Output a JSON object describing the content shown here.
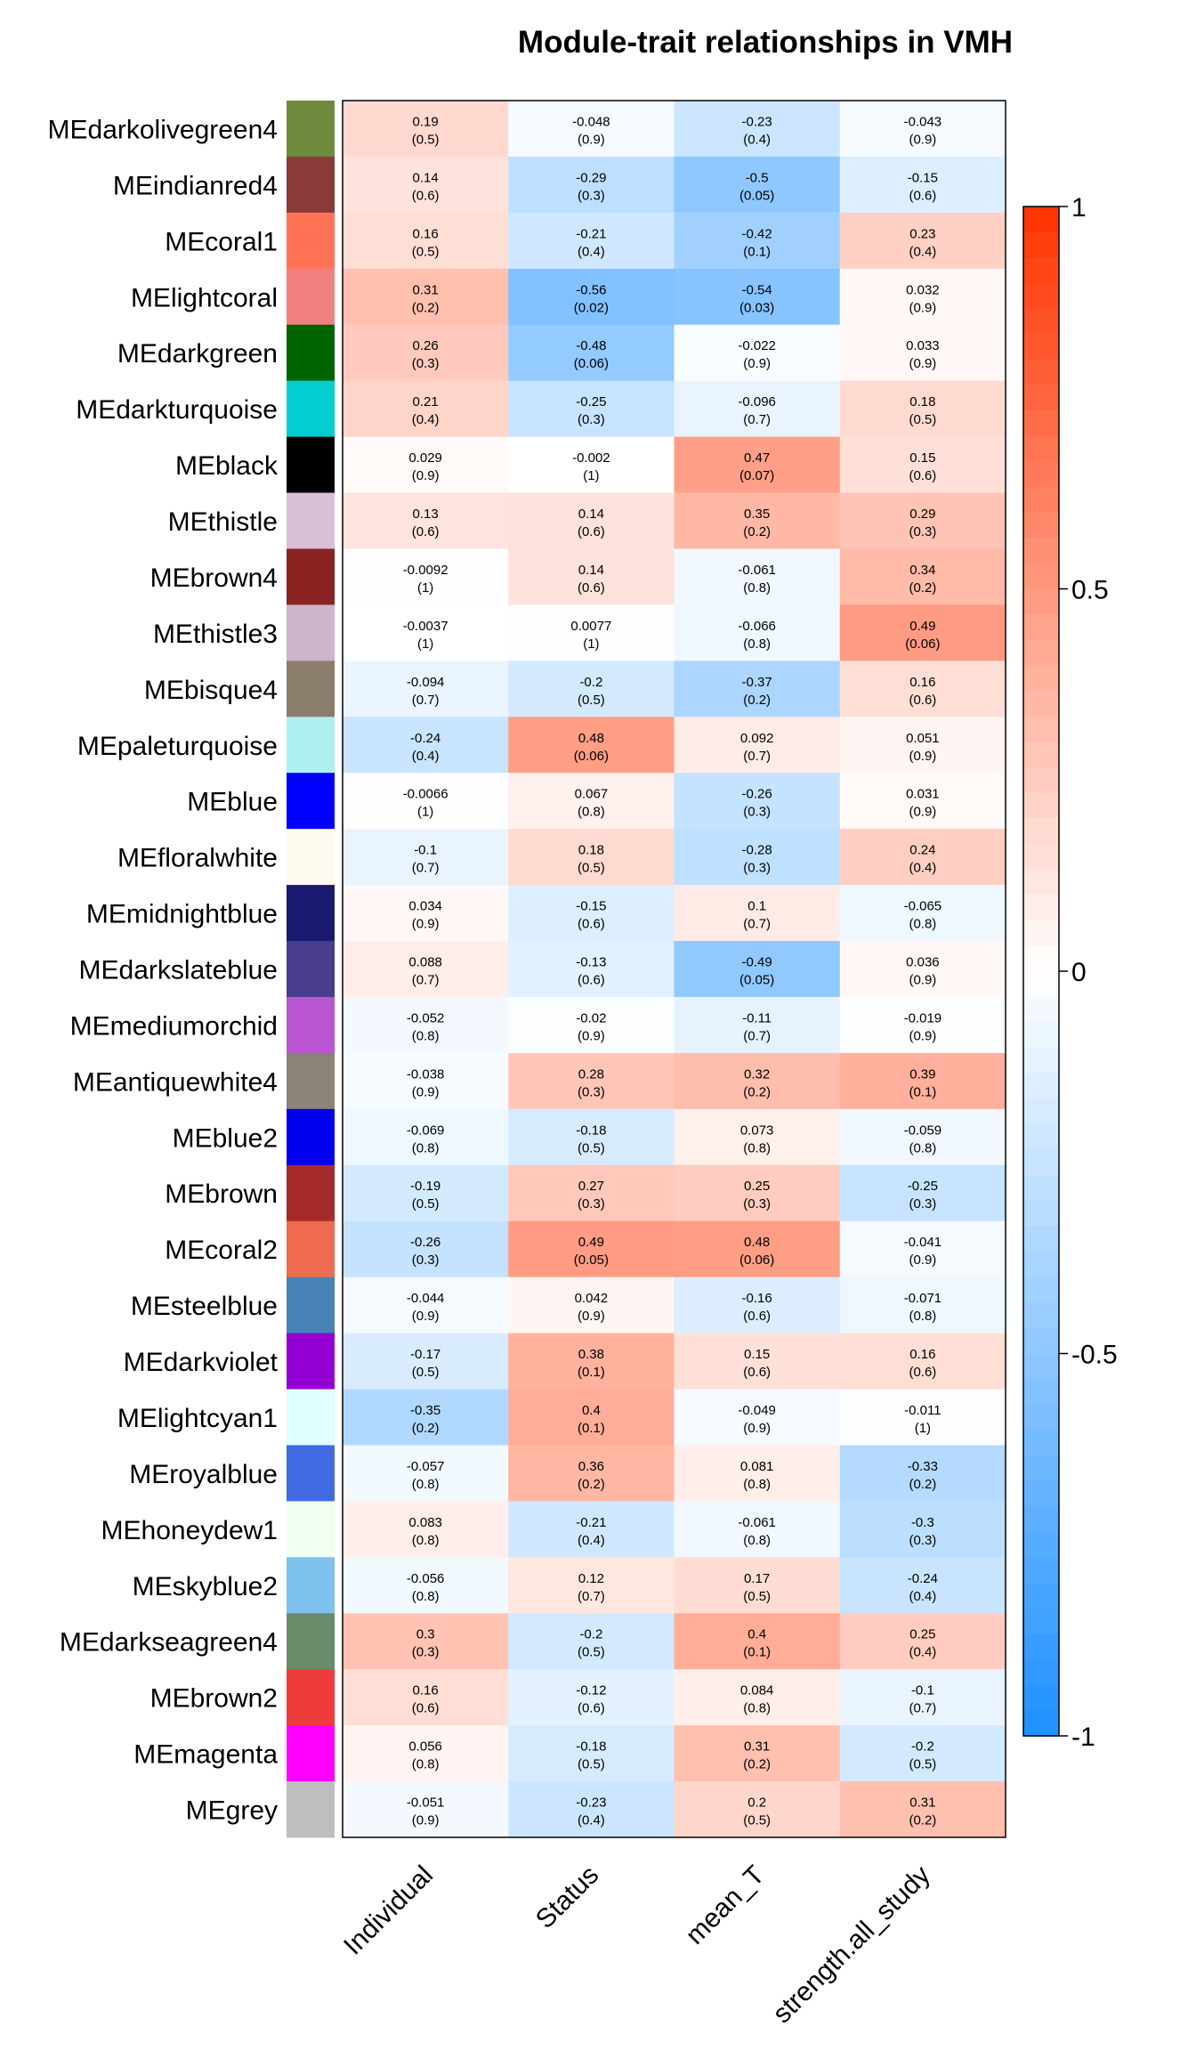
{
  "chart_data": {
    "type": "heatmap",
    "title": "Module-trait relationships in VMH",
    "columns": [
      "Individual",
      "Status",
      "mean_T",
      "strength.all_study"
    ],
    "rows": [
      {
        "name": "MEdarkolivegreen4",
        "color": "#6E8B3D",
        "r": [
          0.19,
          -0.048,
          -0.23,
          -0.043
        ],
        "r_label": [
          "0.19",
          "-0.048",
          "-0.23",
          "-0.043"
        ],
        "p": [
          "0.5",
          "0.9",
          "0.4",
          "0.9"
        ]
      },
      {
        "name": "MEindianred4",
        "color": "#8B3A3A",
        "r": [
          0.14,
          -0.29,
          -0.5,
          -0.15
        ],
        "r_label": [
          "0.14",
          "-0.29",
          "-0.5",
          "-0.15"
        ],
        "p": [
          "0.6",
          "0.3",
          "0.05",
          "0.6"
        ]
      },
      {
        "name": "MEcoral1",
        "color": "#FF7256",
        "r": [
          0.16,
          -0.21,
          -0.42,
          0.23
        ],
        "r_label": [
          "0.16",
          "-0.21",
          "-0.42",
          "0.23"
        ],
        "p": [
          "0.5",
          "0.4",
          "0.1",
          "0.4"
        ]
      },
      {
        "name": "MElightcoral",
        "color": "#F08080",
        "r": [
          0.31,
          -0.56,
          -0.54,
          0.032
        ],
        "r_label": [
          "0.31",
          "-0.56",
          "-0.54",
          "0.032"
        ],
        "p": [
          "0.2",
          "0.02",
          "0.03",
          "0.9"
        ]
      },
      {
        "name": "MEdarkgreen",
        "color": "#006400",
        "r": [
          0.26,
          -0.48,
          -0.022,
          0.033
        ],
        "r_label": [
          "0.26",
          "-0.48",
          "-0.022",
          "0.033"
        ],
        "p": [
          "0.3",
          "0.06",
          "0.9",
          "0.9"
        ]
      },
      {
        "name": "MEdarkturquoise",
        "color": "#00CED1",
        "r": [
          0.21,
          -0.25,
          -0.096,
          0.18
        ],
        "r_label": [
          "0.21",
          "-0.25",
          "-0.096",
          "0.18"
        ],
        "p": [
          "0.4",
          "0.3",
          "0.7",
          "0.5"
        ]
      },
      {
        "name": "MEblack",
        "color": "#000000",
        "r": [
          0.029,
          -0.002,
          0.47,
          0.15
        ],
        "r_label": [
          "0.029",
          "-0.002",
          "0.47",
          "0.15"
        ],
        "p": [
          "0.9",
          "1",
          "0.07",
          "0.6"
        ]
      },
      {
        "name": "MEthistle",
        "color": "#D8BFD8",
        "r": [
          0.13,
          0.14,
          0.35,
          0.29
        ],
        "r_label": [
          "0.13",
          "0.14",
          "0.35",
          "0.29"
        ],
        "p": [
          "0.6",
          "0.6",
          "0.2",
          "0.3"
        ]
      },
      {
        "name": "MEbrown4",
        "color": "#8B2323",
        "r": [
          -0.0092,
          0.14,
          -0.061,
          0.34
        ],
        "r_label": [
          "-0.0092",
          "0.14",
          "-0.061",
          "0.34"
        ],
        "p": [
          "1",
          "0.6",
          "0.8",
          "0.2"
        ]
      },
      {
        "name": "MEthistle3",
        "color": "#CDB5CD",
        "r": [
          -0.0037,
          0.0077,
          -0.066,
          0.49
        ],
        "r_label": [
          "-0.0037",
          "0.0077",
          "-0.066",
          "0.49"
        ],
        "p": [
          "1",
          "1",
          "0.8",
          "0.06"
        ]
      },
      {
        "name": "MEbisque4",
        "color": "#8B7D6B",
        "r": [
          -0.094,
          -0.2,
          -0.37,
          0.16
        ],
        "r_label": [
          "-0.094",
          "-0.2",
          "-0.37",
          "0.16"
        ],
        "p": [
          "0.7",
          "0.5",
          "0.2",
          "0.6"
        ]
      },
      {
        "name": "MEpaleturquoise",
        "color": "#AFEEEE",
        "r": [
          -0.24,
          0.48,
          0.092,
          0.051
        ],
        "r_label": [
          "-0.24",
          "0.48",
          "0.092",
          "0.051"
        ],
        "p": [
          "0.4",
          "0.06",
          "0.7",
          "0.9"
        ]
      },
      {
        "name": "MEblue",
        "color": "#0000FF",
        "r": [
          -0.0066,
          0.067,
          -0.26,
          0.031
        ],
        "r_label": [
          "-0.0066",
          "0.067",
          "-0.26",
          "0.031"
        ],
        "p": [
          "1",
          "0.8",
          "0.3",
          "0.9"
        ]
      },
      {
        "name": "MEfloralwhite",
        "color": "#FFFAF0",
        "r": [
          -0.1,
          0.18,
          -0.28,
          0.24
        ],
        "r_label": [
          "-0.1",
          "0.18",
          "-0.28",
          "0.24"
        ],
        "p": [
          "0.7",
          "0.5",
          "0.3",
          "0.4"
        ]
      },
      {
        "name": "MEmidnightblue",
        "color": "#191970",
        "r": [
          0.034,
          -0.15,
          0.1,
          -0.065
        ],
        "r_label": [
          "0.034",
          "-0.15",
          "0.1",
          "-0.065"
        ],
        "p": [
          "0.9",
          "0.6",
          "0.7",
          "0.8"
        ]
      },
      {
        "name": "MEdarkslateblue",
        "color": "#483D8B",
        "r": [
          0.088,
          -0.13,
          -0.49,
          0.036
        ],
        "r_label": [
          "0.088",
          "-0.13",
          "-0.49",
          "0.036"
        ],
        "p": [
          "0.7",
          "0.6",
          "0.05",
          "0.9"
        ]
      },
      {
        "name": "MEmediumorchid",
        "color": "#BA55D3",
        "r": [
          -0.052,
          -0.02,
          -0.11,
          -0.019
        ],
        "r_label": [
          "-0.052",
          "-0.02",
          "-0.11",
          "-0.019"
        ],
        "p": [
          "0.8",
          "0.9",
          "0.7",
          "0.9"
        ]
      },
      {
        "name": "MEantiquewhite4",
        "color": "#8B8378",
        "r": [
          -0.038,
          0.28,
          0.32,
          0.39
        ],
        "r_label": [
          "-0.038",
          "0.28",
          "0.32",
          "0.39"
        ],
        "p": [
          "0.9",
          "0.3",
          "0.2",
          "0.1"
        ]
      },
      {
        "name": "MEblue2",
        "color": "#0000EE",
        "r": [
          -0.069,
          -0.18,
          0.073,
          -0.059
        ],
        "r_label": [
          "-0.069",
          "-0.18",
          "0.073",
          "-0.059"
        ],
        "p": [
          "0.8",
          "0.5",
          "0.8",
          "0.8"
        ]
      },
      {
        "name": "MEbrown",
        "color": "#A52A2A",
        "r": [
          -0.19,
          0.27,
          0.25,
          -0.25
        ],
        "r_label": [
          "-0.19",
          "0.27",
          "0.25",
          "-0.25"
        ],
        "p": [
          "0.5",
          "0.3",
          "0.3",
          "0.3"
        ]
      },
      {
        "name": "MEcoral2",
        "color": "#EE6A50",
        "r": [
          -0.26,
          0.49,
          0.48,
          -0.041
        ],
        "r_label": [
          "-0.26",
          "0.49",
          "0.48",
          "-0.041"
        ],
        "p": [
          "0.3",
          "0.05",
          "0.06",
          "0.9"
        ]
      },
      {
        "name": "MEsteelblue",
        "color": "#4682B4",
        "r": [
          -0.044,
          0.042,
          -0.16,
          -0.071
        ],
        "r_label": [
          "-0.044",
          "0.042",
          "-0.16",
          "-0.071"
        ],
        "p": [
          "0.9",
          "0.9",
          "0.6",
          "0.8"
        ]
      },
      {
        "name": "MEdarkviolet",
        "color": "#9400D3",
        "r": [
          -0.17,
          0.38,
          0.15,
          0.16
        ],
        "r_label": [
          "-0.17",
          "0.38",
          "0.15",
          "0.16"
        ],
        "p": [
          "0.5",
          "0.1",
          "0.6",
          "0.6"
        ]
      },
      {
        "name": "MElightcyan1",
        "color": "#E0FFFF",
        "r": [
          -0.35,
          0.4,
          -0.049,
          -0.011
        ],
        "r_label": [
          "-0.35",
          "0.4",
          "-0.049",
          "-0.011"
        ],
        "p": [
          "0.2",
          "0.1",
          "0.9",
          "1"
        ]
      },
      {
        "name": "MEroyalblue",
        "color": "#4169E1",
        "r": [
          -0.057,
          0.36,
          0.081,
          -0.33
        ],
        "r_label": [
          "-0.057",
          "0.36",
          "0.081",
          "-0.33"
        ],
        "p": [
          "0.8",
          "0.2",
          "0.8",
          "0.2"
        ]
      },
      {
        "name": "MEhoneydew1",
        "color": "#F0FFF0",
        "r": [
          0.083,
          -0.21,
          -0.061,
          -0.3
        ],
        "r_label": [
          "0.083",
          "-0.21",
          "-0.061",
          "-0.3"
        ],
        "p": [
          "0.8",
          "0.4",
          "0.8",
          "0.3"
        ]
      },
      {
        "name": "MEskyblue2",
        "color": "#7EC0EE",
        "r": [
          -0.056,
          0.12,
          0.17,
          -0.24
        ],
        "r_label": [
          "-0.056",
          "0.12",
          "0.17",
          "-0.24"
        ],
        "p": [
          "0.8",
          "0.7",
          "0.5",
          "0.4"
        ]
      },
      {
        "name": "MEdarkseagreen4",
        "color": "#698B69",
        "r": [
          0.3,
          -0.2,
          0.4,
          0.25
        ],
        "r_label": [
          "0.3",
          "-0.2",
          "0.4",
          "0.25"
        ],
        "p": [
          "0.3",
          "0.5",
          "0.1",
          "0.4"
        ]
      },
      {
        "name": "MEbrown2",
        "color": "#EE3B3B",
        "r": [
          0.16,
          -0.12,
          0.084,
          -0.1
        ],
        "r_label": [
          "0.16",
          "-0.12",
          "0.084",
          "-0.1"
        ],
        "p": [
          "0.6",
          "0.6",
          "0.8",
          "0.7"
        ]
      },
      {
        "name": "MEmagenta",
        "color": "#FF00FF",
        "r": [
          0.056,
          -0.18,
          0.31,
          -0.2
        ],
        "r_label": [
          "0.056",
          "-0.18",
          "0.31",
          "-0.2"
        ],
        "p": [
          "0.8",
          "0.5",
          "0.2",
          "0.5"
        ]
      },
      {
        "name": "MEgrey",
        "color": "#BEBEBE",
        "r": [
          -0.051,
          -0.23,
          0.2,
          0.31
        ],
        "r_label": [
          "-0.051",
          "-0.23",
          "0.2",
          "0.31"
        ],
        "p": [
          "0.9",
          "0.4",
          "0.5",
          "0.2"
        ]
      }
    ],
    "color_scale": {
      "min": -1,
      "max": 1,
      "low_color": "#1E90FF",
      "mid_color": "#FFFFFF",
      "high_color": "#FF3300"
    },
    "legend": {
      "ticks": [
        "1",
        "0.5",
        "0",
        "-0.5",
        "-1"
      ],
      "tick_values": [
        1,
        0.5,
        0,
        -0.5,
        -1
      ],
      "placement": "right"
    }
  }
}
